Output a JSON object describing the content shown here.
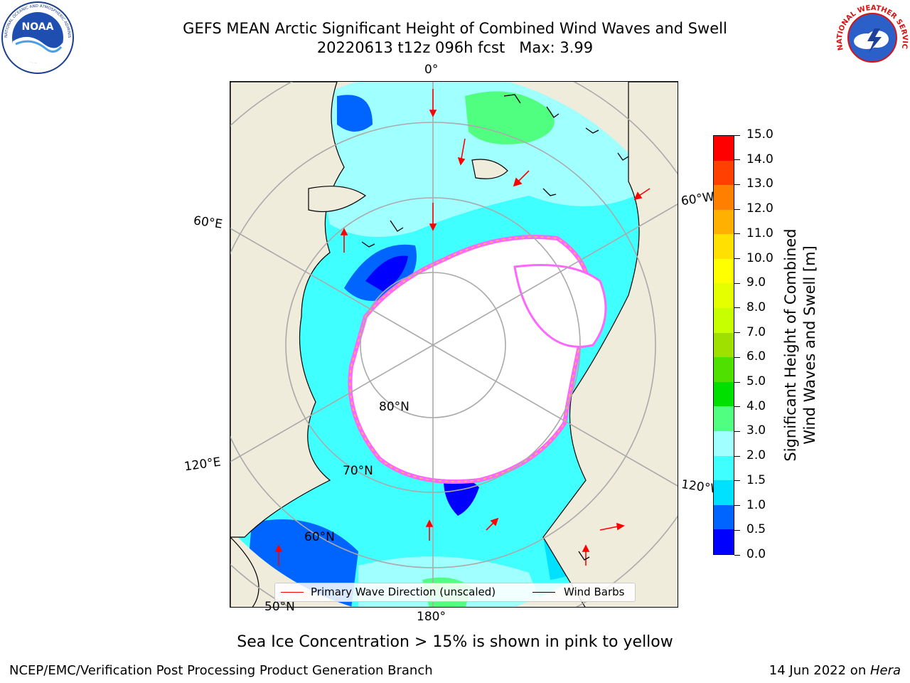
{
  "header": {
    "title_line1": "GEFS MEAN Arctic Significant Height of Combined Wind Waves and Swell",
    "title_line2": "20220613 t12z 096h fcst   Max: 3.99"
  },
  "logos": {
    "noaa_text": "NOAA",
    "noaa_ring_text": "NATIONAL OCEANIC AND ATMOSPHERIC ADMINISTRATION · U.S. DEPARTMENT OF COMMERCE",
    "nws_ring_text": "NATIONAL WEATHER SERVICE"
  },
  "map": {
    "meridian_labels": {
      "lon_0": "0°",
      "lon_60w": "60°W",
      "lon_60e": "60°E",
      "lon_120e": "120°E",
      "lon_120w": "120°W",
      "lon_180": "180°"
    },
    "parallel_labels": {
      "lat_80": "80°N",
      "lat_70": "70°N",
      "lat_60": "60°N",
      "lat_50": "50°N"
    },
    "colors": {
      "land": "#efecdc",
      "sea_ice": "#ffffff",
      "ice_edge_pink": "#ff66ff",
      "ice_edge_orange": "#ffb060",
      "gridline": "#aaaaaa",
      "wave_arrow": "#ff0000",
      "wind_barb": "#000000"
    }
  },
  "legend": {
    "wave_label": "Primary Wave Direction (unscaled)",
    "wind_label": "Wind Barbs"
  },
  "colorbar": {
    "title_line1": "Significant Height of Combined",
    "title_line2": "Wind Waves and Swell [m]",
    "ticks": [
      "0.0",
      "0.5",
      "1.0",
      "1.5",
      "2.0",
      "3.0",
      "4.0",
      "5.0",
      "6.0",
      "7.0",
      "8.0",
      "9.0",
      "10.0",
      "11.0",
      "12.0",
      "13.0",
      "14.0",
      "15.0"
    ],
    "colors": [
      "#0000ff",
      "#0064ff",
      "#00e1ff",
      "#40ffff",
      "#a0ffff",
      "#50ff80",
      "#00e000",
      "#50e000",
      "#a0e000",
      "#c8ff00",
      "#e6ff00",
      "#ffff00",
      "#ffe000",
      "#ffb000",
      "#ff8000",
      "#ff4000",
      "#ff0000"
    ]
  },
  "footer": {
    "subtitle": "Sea Ice Concentration > 15% is shown in pink to yellow",
    "left": "NCEP/EMC/Verification Post Processing Product Generation Branch",
    "right_prefix": "14 Jun 2022 on ",
    "right_host": "Hera"
  }
}
